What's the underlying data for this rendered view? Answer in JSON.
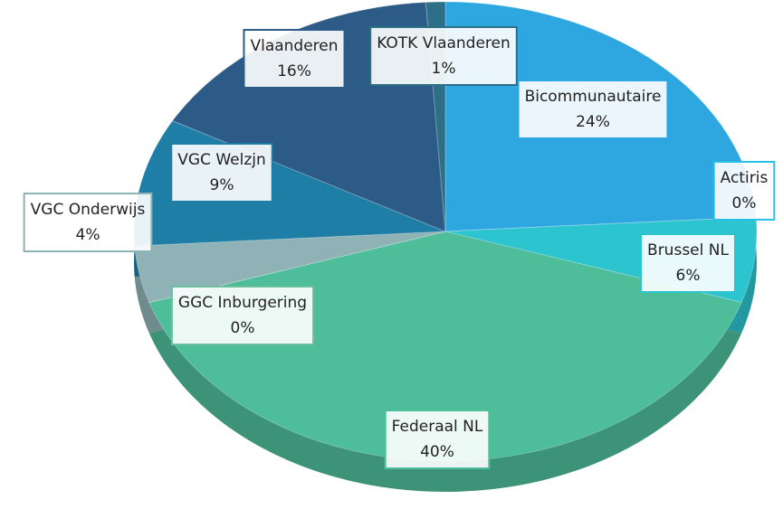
{
  "chart_data": {
    "type": "pie",
    "categories": [
      "Bicommunautaire",
      "Actiris",
      "Brussel NL",
      "Federaal NL",
      "GGC Inburgering",
      "VGC Onderwijs",
      "VGC Welzjn",
      "Vlaanderen",
      "KOTK Vlaanderen"
    ],
    "values": [
      24,
      0,
      6,
      40,
      0,
      4,
      9,
      16,
      1
    ],
    "value_labels": [
      "24%",
      "0%",
      "6%",
      "40%",
      "0%",
      "4%",
      "9%",
      "16%",
      "1%"
    ],
    "colors": [
      "#2ea6e0",
      "#27c0e6",
      "#2cc4cf",
      "#4dbd9a",
      "#6bbf9c",
      "#8fb2b6",
      "#1f7ea6",
      "#2b5b86",
      "#2e6f88"
    ]
  }
}
